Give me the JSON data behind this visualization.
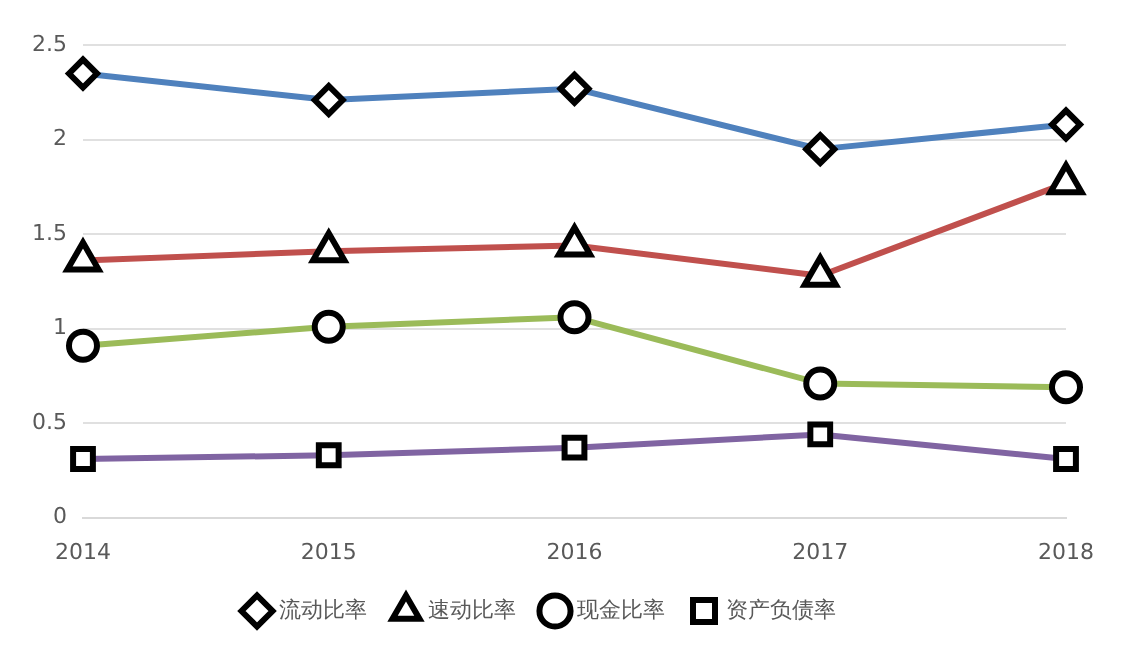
{
  "chart_data": {
    "type": "line",
    "categories": [
      "2014",
      "2015",
      "2016",
      "2017",
      "2018"
    ],
    "series": [
      {
        "name": "流动比率",
        "color": "#4f81bd",
        "marker": "diamond",
        "values": [
          2.35,
          2.21,
          2.27,
          1.95,
          2.08
        ]
      },
      {
        "name": "速动比率",
        "color": "#c0504d",
        "marker": "triangle",
        "values": [
          1.36,
          1.41,
          1.44,
          1.28,
          1.77
        ]
      },
      {
        "name": "现金比率",
        "color": "#9bbb59",
        "marker": "circle",
        "values": [
          0.91,
          1.01,
          1.06,
          0.71,
          0.69
        ]
      },
      {
        "name": "资产负债率",
        "color": "#8064a2",
        "marker": "square",
        "values": [
          0.31,
          0.33,
          0.37,
          0.44,
          0.31
        ]
      }
    ],
    "ylim": [
      0,
      2.5
    ],
    "yticks": [
      0,
      0.5,
      1,
      1.5,
      2,
      2.5
    ],
    "grid": "y",
    "legend": "bottom"
  }
}
